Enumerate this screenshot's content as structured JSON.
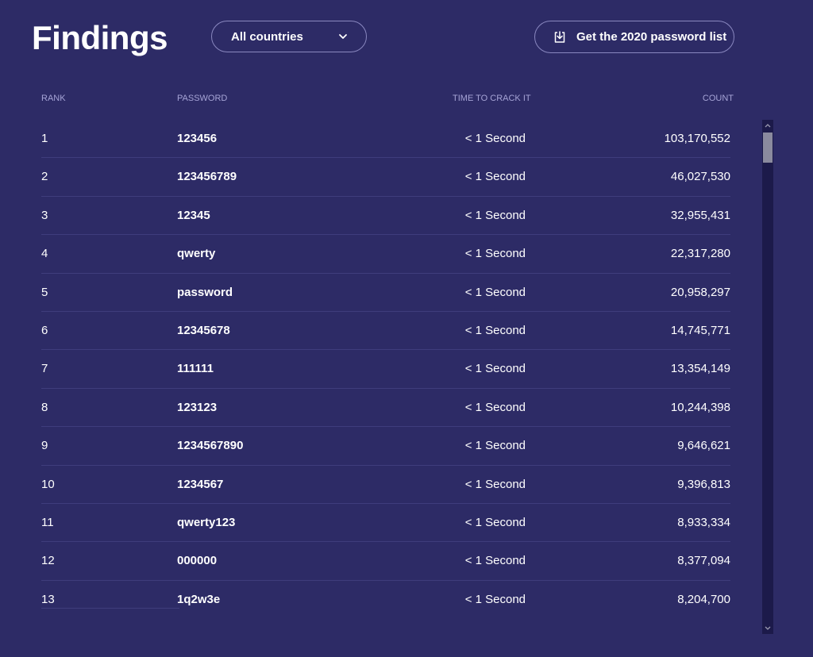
{
  "header": {
    "title": "Findings",
    "country_select": "All countries",
    "download_label": "Get the 2020 password list"
  },
  "table": {
    "columns": {
      "rank": "RANK",
      "password": "PASSWORD",
      "time": "TIME TO CRACK IT",
      "count": "COUNT"
    },
    "rows": [
      {
        "rank": "1",
        "password": "123456",
        "time": "< 1 Second",
        "count": "103,170,552"
      },
      {
        "rank": "2",
        "password": "123456789",
        "time": "< 1 Second",
        "count": "46,027,530"
      },
      {
        "rank": "3",
        "password": "12345",
        "time": "< 1 Second",
        "count": "32,955,431"
      },
      {
        "rank": "4",
        "password": "qwerty",
        "time": "< 1 Second",
        "count": "22,317,280"
      },
      {
        "rank": "5",
        "password": "password",
        "time": "< 1 Second",
        "count": "20,958,297"
      },
      {
        "rank": "6",
        "password": "12345678",
        "time": "< 1 Second",
        "count": "14,745,771"
      },
      {
        "rank": "7",
        "password": "111111",
        "time": "< 1 Second",
        "count": "13,354,149"
      },
      {
        "rank": "8",
        "password": "123123",
        "time": "< 1 Second",
        "count": "10,244,398"
      },
      {
        "rank": "9",
        "password": "1234567890",
        "time": "< 1 Second",
        "count": "9,646,621"
      },
      {
        "rank": "10",
        "password": "1234567",
        "time": "< 1 Second",
        "count": "9,396,813"
      },
      {
        "rank": "11",
        "password": "qwerty123",
        "time": "< 1 Second",
        "count": "8,933,334"
      },
      {
        "rank": "12",
        "password": "000000",
        "time": "< 1 Second",
        "count": "8,377,094"
      },
      {
        "rank": "13",
        "password": "1q2w3e",
        "time": "< 1 Second",
        "count": "8,204,700"
      }
    ]
  },
  "icons": {
    "select_chevron": "chevron-down-icon",
    "download": "download-icon"
  },
  "colors": {
    "background": "#2d2b66",
    "header_text": "#a6a4d6",
    "divider": "#3f3d7c"
  }
}
